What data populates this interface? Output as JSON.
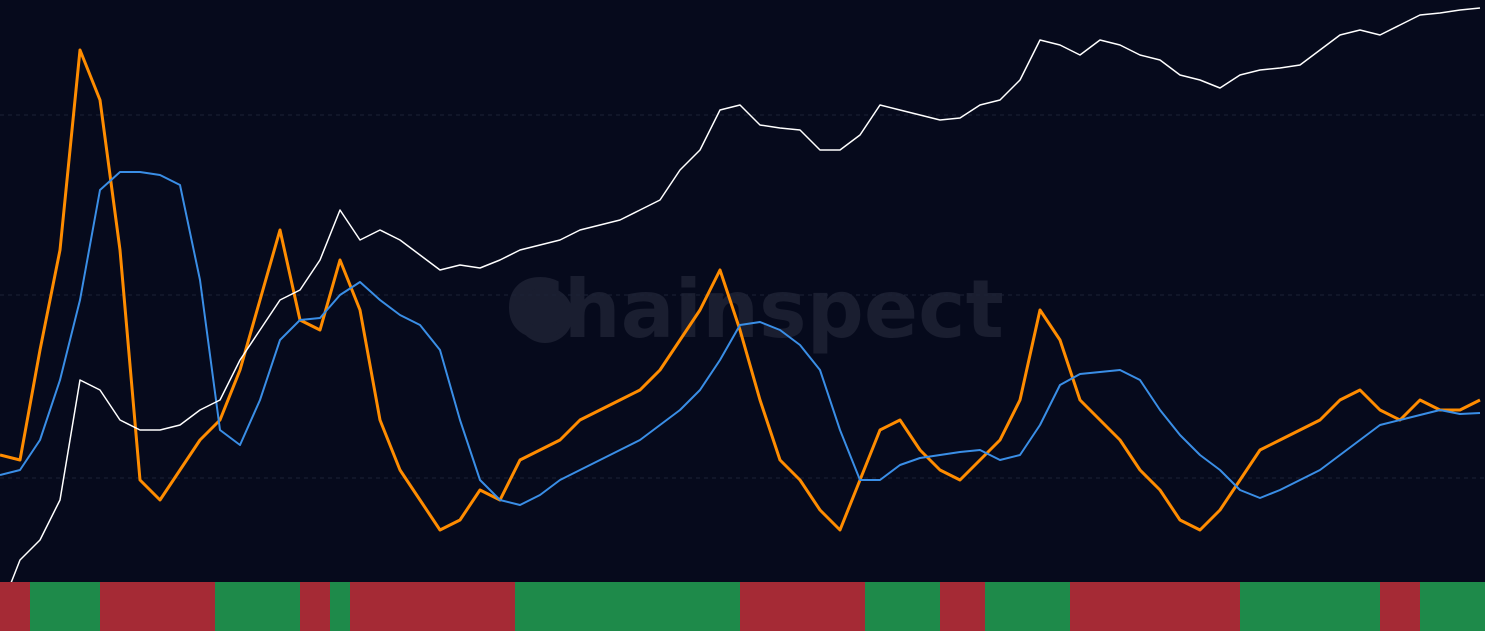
{
  "chart_data": {
    "type": "line",
    "watermark": "Chainspect",
    "x": [
      0,
      20,
      40,
      60,
      80,
      100,
      120,
      140,
      160,
      180,
      200,
      220,
      240,
      260,
      280,
      300,
      320,
      340,
      360,
      380,
      400,
      420,
      440,
      460,
      480,
      500,
      520,
      540,
      560,
      580,
      600,
      620,
      640,
      660,
      680,
      700,
      720,
      740,
      760,
      780,
      800,
      820,
      840,
      860,
      880,
      900,
      920,
      940,
      960,
      980,
      1000,
      1020,
      1040,
      1060,
      1080,
      1100,
      1120,
      1140,
      1160,
      1180,
      1200,
      1220,
      1240,
      1260,
      1280,
      1300,
      1320,
      1340,
      1360,
      1380,
      1400,
      1420,
      1440,
      1460,
      1480
    ],
    "xlim": [
      0,
      1485
    ],
    "ylim": [
      0,
      631
    ],
    "yticks": [
      153,
      336,
      516
    ],
    "grid": true,
    "series": [
      {
        "color": "#ff8c00",
        "width": 3,
        "values": [
          176,
          171,
          281,
          381,
          581,
          531,
          381,
          151,
          131,
          161,
          191,
          211,
          261,
          331,
          401,
          311,
          301,
          371,
          321,
          211,
          161,
          131,
          101,
          111,
          141,
          131,
          171,
          181,
          191,
          211,
          221,
          231,
          241,
          261,
          291,
          321,
          361,
          301,
          231,
          171,
          151,
          121,
          101,
          151,
          201,
          211,
          181,
          161,
          151,
          171,
          191,
          231,
          321,
          291,
          231,
          211,
          191,
          161,
          141,
          111,
          101,
          121,
          151,
          181,
          191,
          201,
          211,
          231,
          241,
          221,
          211,
          231,
          221,
          221,
          231
        ]
      },
      {
        "color": "#3a8ee6",
        "width": 2,
        "values": [
          156,
          161,
          191,
          251,
          331,
          441,
          459,
          459,
          456,
          446,
          351,
          201,
          186,
          231,
          291,
          311,
          313,
          336,
          349,
          331,
          316,
          306,
          281,
          211,
          151,
          131,
          126,
          136,
          151,
          161,
          171,
          181,
          191,
          206,
          221,
          241,
          271,
          306,
          309,
          301,
          286,
          261,
          201,
          151,
          151,
          166,
          173,
          176,
          179,
          181,
          171,
          176,
          206,
          246,
          257,
          259,
          261,
          251,
          221,
          196,
          176,
          161,
          141,
          133,
          141,
          151,
          161,
          176,
          191,
          206,
          211,
          216,
          221,
          217,
          218
        ]
      },
      {
        "color": "#ffffff",
        "width": 1.5,
        "values": [
          20,
          71,
          91,
          131,
          251,
          241,
          211,
          201,
          201,
          206,
          221,
          231,
          271,
          301,
          331,
          341,
          371,
          421,
          391,
          401,
          391,
          376,
          361,
          366,
          363,
          371,
          381,
          386,
          391,
          401,
          406,
          411,
          421,
          431,
          461,
          481,
          521,
          526,
          506,
          503,
          501,
          481,
          481,
          496,
          526,
          521,
          516,
          511,
          513,
          526,
          531,
          551,
          591,
          586,
          576,
          591,
          586,
          576,
          571,
          556,
          551,
          543,
          556,
          561,
          563,
          566,
          581,
          596,
          601,
          596,
          606,
          616,
          618,
          621,
          623
        ]
      }
    ],
    "regimes": [
      {
        "start": 0,
        "end": 30,
        "color": "#a52a35"
      },
      {
        "start": 30,
        "end": 100,
        "color": "#1e8a4a"
      },
      {
        "start": 100,
        "end": 215,
        "color": "#a52a35"
      },
      {
        "start": 215,
        "end": 300,
        "color": "#1e8a4a"
      },
      {
        "start": 300,
        "end": 330,
        "color": "#a52a35"
      },
      {
        "start": 330,
        "end": 350,
        "color": "#1e8a4a"
      },
      {
        "start": 350,
        "end": 515,
        "color": "#a52a35"
      },
      {
        "start": 515,
        "end": 740,
        "color": "#1e8a4a"
      },
      {
        "start": 740,
        "end": 865,
        "color": "#a52a35"
      },
      {
        "start": 865,
        "end": 940,
        "color": "#1e8a4a"
      },
      {
        "start": 940,
        "end": 985,
        "color": "#a52a35"
      },
      {
        "start": 985,
        "end": 1070,
        "color": "#1e8a4a"
      },
      {
        "start": 1070,
        "end": 1240,
        "color": "#a52a35"
      },
      {
        "start": 1240,
        "end": 1380,
        "color": "#1e8a4a"
      },
      {
        "start": 1380,
        "end": 1420,
        "color": "#a52a35"
      },
      {
        "start": 1420,
        "end": 1485,
        "color": "#1e8a4a"
      }
    ]
  }
}
